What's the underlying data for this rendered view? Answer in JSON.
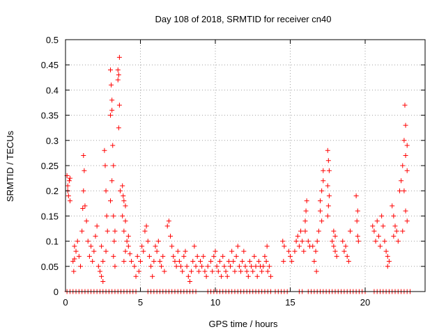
{
  "chart_data": {
    "type": "scatter",
    "title": "Day 108 of 2018, SRMTID for receiver cn40",
    "xlabel": "GPS time / hours",
    "ylabel": "SRMTID / TECUs",
    "xlim": [
      0,
      24
    ],
    "ylim": [
      0,
      0.5
    ],
    "xticks": [
      0,
      5,
      10,
      15,
      20
    ],
    "xtick_labels": [
      "0",
      "5",
      "10",
      "15",
      "20"
    ],
    "yticks": [
      0,
      0.05,
      0.1,
      0.15,
      0.2,
      0.25,
      0.3,
      0.35,
      0.4,
      0.45,
      0.5
    ],
    "ytick_labels": [
      "0",
      "0.05",
      "0.1",
      "0.15",
      "0.2",
      "0.25",
      "0.3",
      "0.35",
      "0.4",
      "0.45",
      "0.5"
    ],
    "grid": true,
    "marker": "+",
    "color": "#ff0000",
    "series": [
      {
        "name": "SRMTID",
        "points": [
          [
            0.1,
            0.23
          ],
          [
            0.15,
            0.21
          ],
          [
            0.2,
            0.19
          ],
          [
            0.25,
            0.22
          ],
          [
            0.3,
            0.18
          ],
          [
            0.15,
            0.2
          ],
          [
            0.3,
            0.225
          ],
          [
            0.5,
            0.06
          ],
          [
            0.6,
            0.09
          ],
          [
            0.7,
            0.08
          ],
          [
            0.8,
            0.1
          ],
          [
            0.6,
            0.065
          ],
          [
            0.9,
            0.07
          ],
          [
            0.55,
            0.04
          ],
          [
            1.0,
            0.05
          ],
          [
            1.1,
            0.12
          ],
          [
            1.2,
            0.27
          ],
          [
            1.25,
            0.24
          ],
          [
            1.3,
            0.17
          ],
          [
            1.2,
            0.2
          ],
          [
            1.15,
            0.165
          ],
          [
            1.4,
            0.14
          ],
          [
            1.5,
            0.1
          ],
          [
            1.6,
            0.07
          ],
          [
            1.7,
            0.09
          ],
          [
            1.8,
            0.06
          ],
          [
            1.9,
            0.08
          ],
          [
            2.0,
            0.11
          ],
          [
            2.1,
            0.13
          ],
          [
            2.2,
            0.05
          ],
          [
            2.3,
            0.04
          ],
          [
            2.4,
            0.03
          ],
          [
            2.5,
            0.06
          ],
          [
            2.4,
            0.09
          ],
          [
            2.5,
            0.02
          ],
          [
            2.6,
            0.28
          ],
          [
            2.65,
            0.25
          ],
          [
            2.7,
            0.2
          ],
          [
            2.75,
            0.15
          ],
          [
            2.8,
            0.12
          ],
          [
            2.7,
            0.08
          ],
          [
            3.0,
            0.44
          ],
          [
            3.05,
            0.41
          ],
          [
            3.1,
            0.38
          ],
          [
            3.1,
            0.36
          ],
          [
            3.0,
            0.35
          ],
          [
            3.15,
            0.29
          ],
          [
            3.2,
            0.25
          ],
          [
            3.1,
            0.22
          ],
          [
            3.0,
            0.18
          ],
          [
            3.2,
            0.15
          ],
          [
            3.3,
            0.12
          ],
          [
            3.25,
            0.1
          ],
          [
            3.2,
            0.07
          ],
          [
            3.3,
            0.05
          ],
          [
            3.5,
            0.44
          ],
          [
            3.55,
            0.43
          ],
          [
            3.5,
            0.42
          ],
          [
            3.6,
            0.465
          ],
          [
            3.6,
            0.37
          ],
          [
            3.55,
            0.325
          ],
          [
            3.65,
            0.2
          ],
          [
            3.8,
            0.21
          ],
          [
            3.85,
            0.19
          ],
          [
            3.9,
            0.18
          ],
          [
            4.0,
            0.17
          ],
          [
            3.8,
            0.15
          ],
          [
            4.0,
            0.14
          ],
          [
            3.9,
            0.12
          ],
          [
            4.1,
            0.1
          ],
          [
            4.2,
            0.09
          ],
          [
            4.3,
            0.075
          ],
          [
            4.4,
            0.06
          ],
          [
            4.0,
            0.08
          ],
          [
            4.2,
            0.11
          ],
          [
            3.9,
            0.06
          ],
          [
            4.6,
            0.05
          ],
          [
            4.7,
            0.03
          ],
          [
            4.8,
            0.07
          ],
          [
            4.9,
            0.04
          ],
          [
            5.0,
            0.06
          ],
          [
            5.1,
            0.09
          ],
          [
            5.2,
            0.08
          ],
          [
            5.3,
            0.12
          ],
          [
            5.4,
            0.13
          ],
          [
            5.5,
            0.1
          ],
          [
            5.6,
            0.07
          ],
          [
            5.7,
            0.05
          ],
          [
            5.8,
            0.03
          ],
          [
            5.9,
            0.06
          ],
          [
            6.0,
            0.09
          ],
          [
            6.1,
            0.08
          ],
          [
            6.2,
            0.1
          ],
          [
            6.3,
            0.06
          ],
          [
            6.4,
            0.05
          ],
          [
            6.5,
            0.07
          ],
          [
            6.6,
            0.04
          ],
          [
            6.8,
            0.13
          ],
          [
            6.9,
            0.14
          ],
          [
            7.0,
            0.11
          ],
          [
            7.1,
            0.09
          ],
          [
            7.2,
            0.07
          ],
          [
            7.3,
            0.06
          ],
          [
            7.4,
            0.05
          ],
          [
            7.5,
            0.08
          ],
          [
            7.6,
            0.06
          ],
          [
            7.7,
            0.05
          ],
          [
            7.8,
            0.04
          ],
          [
            7.9,
            0.07
          ],
          [
            8.0,
            0.08
          ],
          [
            8.1,
            0.05
          ],
          [
            8.2,
            0.03
          ],
          [
            8.3,
            0.02
          ],
          [
            8.4,
            0.04
          ],
          [
            8.5,
            0.06
          ],
          [
            8.6,
            0.09
          ],
          [
            8.7,
            0.05
          ],
          [
            8.8,
            0.07
          ],
          [
            8.9,
            0.04
          ],
          [
            9.0,
            0.06
          ],
          [
            9.1,
            0.05
          ],
          [
            9.2,
            0.07
          ],
          [
            9.3,
            0.04
          ],
          [
            9.4,
            0.03
          ],
          [
            9.5,
            0.05
          ],
          [
            9.7,
            0.06
          ],
          [
            9.8,
            0.04
          ],
          [
            9.9,
            0.07
          ],
          [
            10.0,
            0.08
          ],
          [
            10.1,
            0.05
          ],
          [
            10.2,
            0.04
          ],
          [
            10.3,
            0.06
          ],
          [
            10.4,
            0.03
          ],
          [
            10.5,
            0.07
          ],
          [
            10.6,
            0.05
          ],
          [
            10.7,
            0.04
          ],
          [
            10.8,
            0.03
          ],
          [
            10.9,
            0.06
          ],
          [
            11.0,
            0.05
          ],
          [
            11.1,
            0.08
          ],
          [
            11.2,
            0.06
          ],
          [
            11.3,
            0.04
          ],
          [
            11.4,
            0.07
          ],
          [
            11.5,
            0.09
          ],
          [
            11.6,
            0.05
          ],
          [
            11.7,
            0.04
          ],
          [
            11.8,
            0.06
          ],
          [
            11.9,
            0.08
          ],
          [
            12.0,
            0.05
          ],
          [
            12.1,
            0.04
          ],
          [
            12.2,
            0.03
          ],
          [
            12.3,
            0.06
          ],
          [
            12.4,
            0.05
          ],
          [
            12.5,
            0.04
          ],
          [
            12.6,
            0.07
          ],
          [
            12.7,
            0.05
          ],
          [
            12.8,
            0.03
          ],
          [
            12.9,
            0.06
          ],
          [
            13.0,
            0.05
          ],
          [
            13.1,
            0.04
          ],
          [
            13.2,
            0.05
          ],
          [
            13.3,
            0.07
          ],
          [
            13.4,
            0.06
          ],
          [
            13.5,
            0.04
          ],
          [
            13.6,
            0.05
          ],
          [
            13.7,
            0.03
          ],
          [
            13.45,
            0.09
          ],
          [
            14.5,
            0.1
          ],
          [
            14.6,
            0.09
          ],
          [
            14.55,
            0.06
          ],
          [
            14.9,
            0.08
          ],
          [
            15.0,
            0.07
          ],
          [
            15.1,
            0.06
          ],
          [
            15.3,
            0.08
          ],
          [
            15.4,
            0.1
          ],
          [
            15.5,
            0.11
          ],
          [
            15.6,
            0.09
          ],
          [
            15.7,
            0.12
          ],
          [
            15.8,
            0.1
          ],
          [
            15.9,
            0.08
          ],
          [
            16.0,
            0.14
          ],
          [
            16.05,
            0.16
          ],
          [
            16.1,
            0.18
          ],
          [
            16.0,
            0.12
          ],
          [
            16.2,
            0.1
          ],
          [
            16.3,
            0.09
          ],
          [
            16.5,
            0.09
          ],
          [
            16.6,
            0.06
          ],
          [
            16.7,
            0.08
          ],
          [
            16.8,
            0.1
          ],
          [
            16.9,
            0.12
          ],
          [
            16.75,
            0.04
          ],
          [
            17.0,
            0.16
          ],
          [
            17.1,
            0.2
          ],
          [
            17.2,
            0.24
          ],
          [
            17.0,
            0.18
          ],
          [
            17.2,
            0.22
          ],
          [
            17.1,
            0.14
          ],
          [
            17.5,
            0.28
          ],
          [
            17.55,
            0.26
          ],
          [
            17.6,
            0.24
          ],
          [
            17.5,
            0.21
          ],
          [
            17.6,
            0.19
          ],
          [
            17.55,
            0.17
          ],
          [
            17.5,
            0.15
          ],
          [
            17.8,
            0.1
          ],
          [
            17.9,
            0.09
          ],
          [
            18.0,
            0.08
          ],
          [
            18.1,
            0.07
          ],
          [
            17.9,
            0.12
          ],
          [
            18.0,
            0.11
          ],
          [
            18.5,
            0.1
          ],
          [
            18.6,
            0.08
          ],
          [
            18.7,
            0.09
          ],
          [
            18.8,
            0.07
          ],
          [
            18.9,
            0.06
          ],
          [
            19.0,
            0.12
          ],
          [
            19.4,
            0.19
          ],
          [
            19.5,
            0.16
          ],
          [
            19.45,
            0.14
          ],
          [
            19.5,
            0.11
          ],
          [
            19.55,
            0.1
          ],
          [
            20.5,
            0.13
          ],
          [
            20.6,
            0.12
          ],
          [
            20.7,
            0.1
          ],
          [
            20.8,
            0.14
          ],
          [
            20.9,
            0.11
          ],
          [
            21.0,
            0.09
          ],
          [
            21.1,
            0.15
          ],
          [
            21.2,
            0.13
          ],
          [
            21.3,
            0.1
          ],
          [
            21.4,
            0.08
          ],
          [
            21.5,
            0.07
          ],
          [
            21.6,
            0.06
          ],
          [
            21.5,
            0.05
          ],
          [
            21.8,
            0.17
          ],
          [
            21.9,
            0.15
          ],
          [
            22.0,
            0.13
          ],
          [
            22.1,
            0.12
          ],
          [
            22.2,
            0.1
          ],
          [
            21.9,
            0.11
          ],
          [
            22.3,
            0.2
          ],
          [
            22.4,
            0.22
          ],
          [
            22.5,
            0.25
          ],
          [
            22.6,
            0.3
          ],
          [
            22.7,
            0.33
          ],
          [
            22.65,
            0.37
          ],
          [
            22.8,
            0.29
          ],
          [
            22.7,
            0.27
          ],
          [
            22.8,
            0.24
          ],
          [
            22.6,
            0.2
          ],
          [
            22.7,
            0.16
          ],
          [
            22.8,
            0.14
          ],
          [
            22.5,
            0.12
          ]
        ],
        "zero_points": [
          0.1,
          0.3,
          0.5,
          0.7,
          0.9,
          1.1,
          1.3,
          1.5,
          1.7,
          1.9,
          2.1,
          2.3,
          2.5,
          2.7,
          2.9,
          3.1,
          3.3,
          3.5,
          3.7,
          3.9,
          4.1,
          4.3,
          4.5,
          4.7,
          5.5,
          5.7,
          5.9,
          6.1,
          6.3,
          6.5,
          6.7,
          6.9,
          7.1,
          7.3,
          7.5,
          7.7,
          7.9,
          8.1,
          8.3,
          8.5,
          8.7,
          9.5,
          9.7,
          9.9,
          10.1,
          10.3,
          10.5,
          10.7,
          10.9,
          11.1,
          11.3,
          11.5,
          11.7,
          11.9,
          12.1,
          12.3,
          12.5,
          12.7,
          12.9,
          13.1,
          13.3,
          13.5,
          13.7,
          14.0,
          14.2,
          14.4,
          14.6,
          14.8,
          15.6,
          15.8,
          16.2,
          16.4,
          16.6,
          16.8,
          17.0,
          17.2,
          17.4,
          17.6,
          17.8,
          18.0,
          18.2,
          18.4,
          18.6,
          18.8,
          19.0,
          19.2,
          19.4,
          19.6,
          19.8,
          20.0,
          20.6,
          20.8,
          21.0,
          21.2,
          21.4,
          21.6,
          21.8,
          22.0,
          22.2,
          22.4,
          22.6,
          22.8,
          23.0
        ]
      }
    ]
  }
}
